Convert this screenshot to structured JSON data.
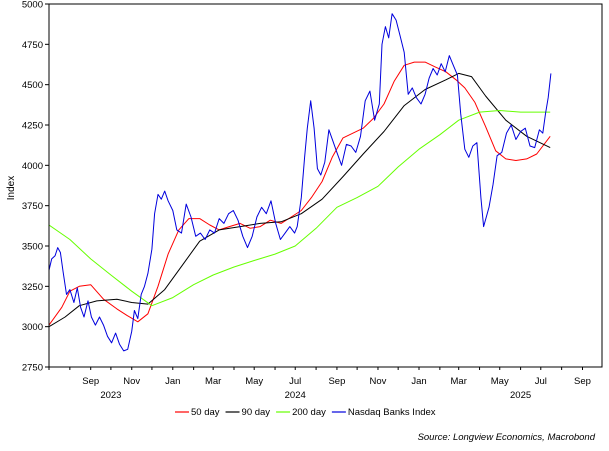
{
  "chart_data": {
    "type": "line",
    "title": "",
    "ylabel": "Index",
    "xlabel": "",
    "ylim": [
      2750,
      5000
    ],
    "y_ticks": [
      2750,
      3000,
      3250,
      3500,
      3750,
      4000,
      4250,
      4500,
      4750,
      5000
    ],
    "grid": false,
    "legend_position": "bottom",
    "x_range": [
      "2023-07-01",
      "2025-09-30"
    ],
    "x_ticks": [
      {
        "date": "2023-09-01",
        "label": "Sep"
      },
      {
        "date": "2023-11-01",
        "label": "Nov"
      },
      {
        "date": "2024-01-01",
        "label": "Jan"
      },
      {
        "date": "2024-03-01",
        "label": "Mar"
      },
      {
        "date": "2024-05-01",
        "label": "May"
      },
      {
        "date": "2024-07-01",
        "label": "Jul"
      },
      {
        "date": "2024-09-01",
        "label": "Sep"
      },
      {
        "date": "2024-11-01",
        "label": "Nov"
      },
      {
        "date": "2025-01-01",
        "label": "Jan"
      },
      {
        "date": "2025-03-01",
        "label": "Mar"
      },
      {
        "date": "2025-05-01",
        "label": "May"
      },
      {
        "date": "2025-07-01",
        "label": "Jul"
      },
      {
        "date": "2025-09-01",
        "label": "Sep"
      }
    ],
    "year_labels": [
      {
        "date": "2023-10-01",
        "label": "2023"
      },
      {
        "date": "2024-07-01",
        "label": "2024"
      },
      {
        "date": "2025-06-01",
        "label": "2025"
      }
    ],
    "source": "Source: Longview Economics, Macrobond",
    "series": [
      {
        "name": "50 day",
        "color": "#ff0000",
        "points": [
          [
            "2023-07-01",
            3010
          ],
          [
            "2023-07-20",
            3120
          ],
          [
            "2023-08-01",
            3220
          ],
          [
            "2023-08-15",
            3250
          ],
          [
            "2023-09-01",
            3260
          ],
          [
            "2023-09-20",
            3170
          ],
          [
            "2023-10-10",
            3110
          ],
          [
            "2023-10-25",
            3070
          ],
          [
            "2023-11-10",
            3030
          ],
          [
            "2023-11-25",
            3080
          ],
          [
            "2023-12-10",
            3250
          ],
          [
            "2023-12-25",
            3450
          ],
          [
            "2024-01-10",
            3600
          ],
          [
            "2024-01-25",
            3670
          ],
          [
            "2024-02-10",
            3670
          ],
          [
            "2024-02-25",
            3630
          ],
          [
            "2024-03-10",
            3600
          ],
          [
            "2024-03-25",
            3620
          ],
          [
            "2024-04-10",
            3640
          ],
          [
            "2024-04-25",
            3610
          ],
          [
            "2024-05-10",
            3620
          ],
          [
            "2024-05-25",
            3660
          ],
          [
            "2024-06-10",
            3640
          ],
          [
            "2024-06-25",
            3680
          ],
          [
            "2024-07-10",
            3720
          ],
          [
            "2024-07-25",
            3800
          ],
          [
            "2024-08-10",
            3900
          ],
          [
            "2024-08-25",
            4050
          ],
          [
            "2024-09-10",
            4170
          ],
          [
            "2024-09-25",
            4200
          ],
          [
            "2024-10-10",
            4230
          ],
          [
            "2024-10-25",
            4290
          ],
          [
            "2024-11-10",
            4380
          ],
          [
            "2024-11-25",
            4520
          ],
          [
            "2024-12-10",
            4620
          ],
          [
            "2024-12-25",
            4640
          ],
          [
            "2025-01-10",
            4640
          ],
          [
            "2025-01-25",
            4610
          ],
          [
            "2025-02-10",
            4580
          ],
          [
            "2025-02-25",
            4530
          ],
          [
            "2025-03-10",
            4480
          ],
          [
            "2025-03-25",
            4390
          ],
          [
            "2025-04-10",
            4240
          ],
          [
            "2025-04-25",
            4090
          ],
          [
            "2025-05-10",
            4040
          ],
          [
            "2025-05-25",
            4030
          ],
          [
            "2025-06-10",
            4040
          ],
          [
            "2025-06-25",
            4070
          ],
          [
            "2025-07-15",
            4180
          ]
        ]
      },
      {
        "name": "90 day",
        "color": "#000000",
        "points": [
          [
            "2023-07-01",
            3000
          ],
          [
            "2023-07-25",
            3060
          ],
          [
            "2023-08-15",
            3130
          ],
          [
            "2023-09-10",
            3160
          ],
          [
            "2023-10-10",
            3170
          ],
          [
            "2023-11-01",
            3150
          ],
          [
            "2023-11-25",
            3140
          ],
          [
            "2023-12-20",
            3230
          ],
          [
            "2024-01-15",
            3380
          ],
          [
            "2024-02-10",
            3530
          ],
          [
            "2024-03-10",
            3600
          ],
          [
            "2024-04-10",
            3620
          ],
          [
            "2024-05-10",
            3640
          ],
          [
            "2024-06-10",
            3650
          ],
          [
            "2024-07-10",
            3700
          ],
          [
            "2024-08-10",
            3790
          ],
          [
            "2024-09-10",
            3930
          ],
          [
            "2024-10-10",
            4070
          ],
          [
            "2024-11-10",
            4210
          ],
          [
            "2024-12-10",
            4370
          ],
          [
            "2025-01-10",
            4470
          ],
          [
            "2025-02-10",
            4530
          ],
          [
            "2025-03-01",
            4570
          ],
          [
            "2025-03-20",
            4550
          ],
          [
            "2025-04-10",
            4430
          ],
          [
            "2025-05-10",
            4280
          ],
          [
            "2025-06-10",
            4180
          ],
          [
            "2025-07-15",
            4110
          ]
        ]
      },
      {
        "name": "200 day",
        "color": "#66ff00",
        "points": [
          [
            "2023-07-01",
            3630
          ],
          [
            "2023-08-01",
            3540
          ],
          [
            "2023-09-01",
            3420
          ],
          [
            "2023-10-01",
            3320
          ],
          [
            "2023-11-01",
            3220
          ],
          [
            "2023-12-01",
            3130
          ],
          [
            "2024-01-01",
            3180
          ],
          [
            "2024-02-01",
            3260
          ],
          [
            "2024-03-01",
            3320
          ],
          [
            "2024-04-01",
            3370
          ],
          [
            "2024-05-01",
            3410
          ],
          [
            "2024-06-01",
            3450
          ],
          [
            "2024-07-01",
            3500
          ],
          [
            "2024-08-01",
            3610
          ],
          [
            "2024-09-01",
            3740
          ],
          [
            "2024-10-01",
            3800
          ],
          [
            "2024-11-01",
            3870
          ],
          [
            "2024-12-01",
            3990
          ],
          [
            "2025-01-01",
            4100
          ],
          [
            "2025-02-01",
            4190
          ],
          [
            "2025-03-01",
            4280
          ],
          [
            "2025-04-01",
            4330
          ],
          [
            "2025-05-01",
            4340
          ],
          [
            "2025-06-01",
            4330
          ],
          [
            "2025-07-15",
            4330
          ]
        ]
      },
      {
        "name": "Nasdaq Banks Index",
        "color": "#0000dd",
        "points": [
          [
            "2023-07-01",
            3350
          ],
          [
            "2023-07-05",
            3420
          ],
          [
            "2023-07-10",
            3440
          ],
          [
            "2023-07-14",
            3490
          ],
          [
            "2023-07-18",
            3460
          ],
          [
            "2023-07-22",
            3340
          ],
          [
            "2023-07-27",
            3200
          ],
          [
            "2023-08-01",
            3230
          ],
          [
            "2023-08-07",
            3150
          ],
          [
            "2023-08-12",
            3240
          ],
          [
            "2023-08-17",
            3120
          ],
          [
            "2023-08-22",
            3060
          ],
          [
            "2023-08-28",
            3160
          ],
          [
            "2023-09-02",
            3060
          ],
          [
            "2023-09-08",
            3010
          ],
          [
            "2023-09-14",
            3060
          ],
          [
            "2023-09-20",
            3010
          ],
          [
            "2023-09-26",
            2940
          ],
          [
            "2023-10-02",
            2900
          ],
          [
            "2023-10-08",
            2960
          ],
          [
            "2023-10-14",
            2890
          ],
          [
            "2023-10-20",
            2850
          ],
          [
            "2023-10-26",
            2860
          ],
          [
            "2023-11-01",
            2970
          ],
          [
            "2023-11-05",
            3100
          ],
          [
            "2023-11-10",
            3050
          ],
          [
            "2023-11-15",
            3200
          ],
          [
            "2023-11-20",
            3250
          ],
          [
            "2023-11-25",
            3330
          ],
          [
            "2023-12-01",
            3480
          ],
          [
            "2023-12-05",
            3700
          ],
          [
            "2023-12-10",
            3820
          ],
          [
            "2023-12-15",
            3790
          ],
          [
            "2023-12-20",
            3840
          ],
          [
            "2023-12-25",
            3780
          ],
          [
            "2024-01-01",
            3720
          ],
          [
            "2024-01-07",
            3600
          ],
          [
            "2024-01-14",
            3580
          ],
          [
            "2024-01-21",
            3760
          ],
          [
            "2024-01-28",
            3680
          ],
          [
            "2024-02-04",
            3560
          ],
          [
            "2024-02-11",
            3580
          ],
          [
            "2024-02-18",
            3540
          ],
          [
            "2024-02-25",
            3600
          ],
          [
            "2024-03-03",
            3580
          ],
          [
            "2024-03-10",
            3670
          ],
          [
            "2024-03-17",
            3640
          ],
          [
            "2024-03-24",
            3700
          ],
          [
            "2024-03-31",
            3720
          ],
          [
            "2024-04-07",
            3660
          ],
          [
            "2024-04-14",
            3560
          ],
          [
            "2024-04-21",
            3490
          ],
          [
            "2024-04-28",
            3560
          ],
          [
            "2024-05-05",
            3680
          ],
          [
            "2024-05-12",
            3740
          ],
          [
            "2024-05-19",
            3700
          ],
          [
            "2024-05-26",
            3780
          ],
          [
            "2024-06-02",
            3640
          ],
          [
            "2024-06-09",
            3540
          ],
          [
            "2024-06-16",
            3580
          ],
          [
            "2024-06-23",
            3620
          ],
          [
            "2024-06-30",
            3580
          ],
          [
            "2024-07-04",
            3620
          ],
          [
            "2024-07-10",
            3800
          ],
          [
            "2024-07-15",
            4050
          ],
          [
            "2024-07-19",
            4230
          ],
          [
            "2024-07-24",
            4400
          ],
          [
            "2024-07-29",
            4230
          ],
          [
            "2024-08-03",
            3980
          ],
          [
            "2024-08-08",
            3940
          ],
          [
            "2024-08-14",
            4020
          ],
          [
            "2024-08-20",
            4220
          ],
          [
            "2024-08-26",
            4150
          ],
          [
            "2024-09-01",
            4080
          ],
          [
            "2024-09-08",
            4000
          ],
          [
            "2024-09-15",
            4130
          ],
          [
            "2024-09-22",
            4120
          ],
          [
            "2024-09-29",
            4080
          ],
          [
            "2024-10-06",
            4180
          ],
          [
            "2024-10-13",
            4400
          ],
          [
            "2024-10-20",
            4460
          ],
          [
            "2024-10-27",
            4280
          ],
          [
            "2024-11-03",
            4380
          ],
          [
            "2024-11-07",
            4750
          ],
          [
            "2024-11-12",
            4860
          ],
          [
            "2024-11-17",
            4790
          ],
          [
            "2024-11-22",
            4940
          ],
          [
            "2024-11-28",
            4900
          ],
          [
            "2024-12-04",
            4800
          ],
          [
            "2024-12-10",
            4700
          ],
          [
            "2024-12-16",
            4440
          ],
          [
            "2024-12-22",
            4480
          ],
          [
            "2024-12-28",
            4420
          ],
          [
            "2025-01-04",
            4380
          ],
          [
            "2025-01-10",
            4440
          ],
          [
            "2025-01-16",
            4540
          ],
          [
            "2025-01-22",
            4600
          ],
          [
            "2025-01-28",
            4560
          ],
          [
            "2025-02-03",
            4630
          ],
          [
            "2025-02-09",
            4580
          ],
          [
            "2025-02-15",
            4680
          ],
          [
            "2025-02-21",
            4620
          ],
          [
            "2025-02-27",
            4560
          ],
          [
            "2025-03-04",
            4320
          ],
          [
            "2025-03-10",
            4100
          ],
          [
            "2025-03-16",
            4050
          ],
          [
            "2025-03-22",
            4120
          ],
          [
            "2025-03-28",
            4140
          ],
          [
            "2025-04-03",
            3800
          ],
          [
            "2025-04-07",
            3620
          ],
          [
            "2025-04-11",
            3680
          ],
          [
            "2025-04-15",
            3740
          ],
          [
            "2025-04-21",
            3880
          ],
          [
            "2025-04-27",
            4060
          ],
          [
            "2025-05-04",
            4080
          ],
          [
            "2025-05-11",
            4200
          ],
          [
            "2025-05-18",
            4250
          ],
          [
            "2025-05-25",
            4160
          ],
          [
            "2025-06-01",
            4210
          ],
          [
            "2025-06-08",
            4230
          ],
          [
            "2025-06-15",
            4120
          ],
          [
            "2025-06-22",
            4110
          ],
          [
            "2025-06-29",
            4220
          ],
          [
            "2025-07-04",
            4200
          ],
          [
            "2025-07-08",
            4320
          ],
          [
            "2025-07-12",
            4420
          ],
          [
            "2025-07-16",
            4570
          ]
        ]
      }
    ]
  }
}
